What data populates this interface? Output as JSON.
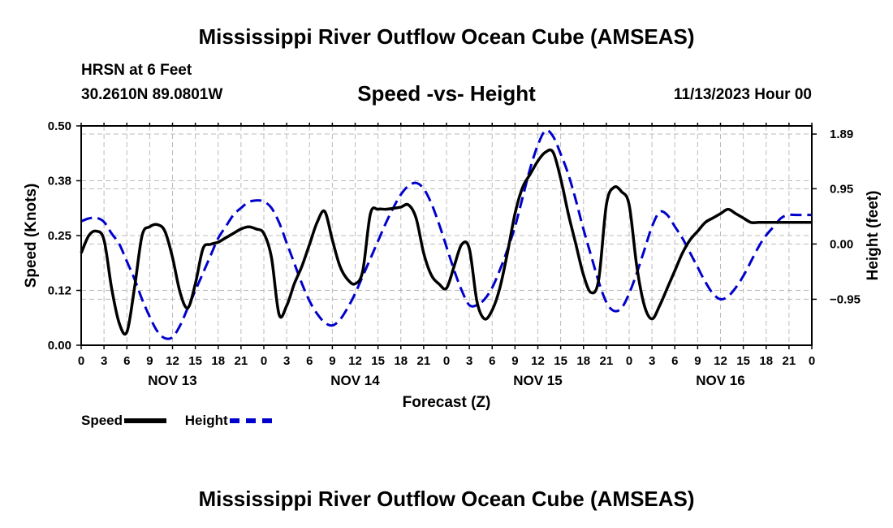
{
  "header": {
    "title": "Mississippi River Outflow Ocean Cube (AMSEAS)",
    "station": "HRSN at 6 Feet",
    "coords": "30.2610N  89.0801W",
    "subtitle": "Speed -vs- Height",
    "datetime": "11/13/2023 Hour 00",
    "bottom_title": "Mississippi River Outflow Ocean Cube (AMSEAS)"
  },
  "legend": {
    "speed_label": "Speed",
    "height_label": "Height"
  },
  "colors": {
    "speed": "#000000",
    "height": "#0000cc",
    "grid": "#bbbbbb"
  },
  "chart_data": {
    "type": "line",
    "title": "Speed -vs- Height",
    "xlabel": "Forecast (Z)",
    "ylabel_left": "Speed (Knots)",
    "ylabel_right": "Height (feet)",
    "xlim": [
      0,
      96
    ],
    "ylim_left": [
      0,
      0.5
    ],
    "ylim_right": [
      -1.74,
      2.03
    ],
    "grid": true,
    "x_tick_labels": [
      "0",
      "3",
      "6",
      "9",
      "12",
      "15",
      "18",
      "21",
      "0",
      "3",
      "6",
      "9",
      "12",
      "15",
      "18",
      "21",
      "0",
      "3",
      "6",
      "9",
      "12",
      "15",
      "18",
      "21",
      "0",
      "3",
      "6",
      "9",
      "12",
      "15",
      "18",
      "21",
      "0"
    ],
    "left_ticks": [
      {
        "value": 0.0,
        "label": "0.00"
      },
      {
        "value": 0.125,
        "label": "0.12"
      },
      {
        "value": 0.25,
        "label": "0.25"
      },
      {
        "value": 0.375,
        "label": "0.38"
      },
      {
        "value": 0.5,
        "label": "0.50"
      }
    ],
    "right_ticks": [
      {
        "value": -0.95,
        "label": "−0.95"
      },
      {
        "value": 0.0,
        "label": "0.00"
      },
      {
        "value": 0.95,
        "label": "0.95"
      },
      {
        "value": 1.89,
        "label": "1.89"
      }
    ],
    "day_labels": [
      {
        "hour": 12,
        "label": "NOV 13"
      },
      {
        "hour": 36,
        "label": "NOV 14"
      },
      {
        "hour": 60,
        "label": "NOV 15"
      },
      {
        "hour": 84,
        "label": "NOV 16"
      }
    ],
    "series": [
      {
        "name": "Speed",
        "axis": "left",
        "x": [
          0,
          1,
          2,
          3,
          4,
          5,
          6,
          7,
          8,
          9,
          10,
          11,
          12,
          13,
          14,
          15,
          16,
          17,
          18,
          19,
          20,
          21,
          22,
          23,
          24,
          25,
          26,
          27,
          28,
          29,
          30,
          31,
          32,
          33,
          34,
          35,
          36,
          37,
          38,
          39,
          40,
          41,
          42,
          43,
          44,
          45,
          46,
          47,
          48,
          49,
          50,
          51,
          52,
          53,
          54,
          55,
          56,
          57,
          58,
          59,
          60,
          61,
          62,
          63,
          64,
          65,
          66,
          67,
          68,
          69,
          70,
          71,
          72,
          73,
          74,
          75,
          76,
          77,
          78,
          79,
          80,
          81,
          82,
          83,
          84,
          85,
          86,
          87,
          88,
          89,
          90,
          91,
          92,
          93,
          94,
          95,
          96
        ],
        "values": [
          0.21,
          0.25,
          0.26,
          0.24,
          0.13,
          0.05,
          0.03,
          0.13,
          0.25,
          0.27,
          0.275,
          0.26,
          0.2,
          0.12,
          0.085,
          0.14,
          0.22,
          0.23,
          0.235,
          0.245,
          0.255,
          0.265,
          0.27,
          0.265,
          0.255,
          0.2,
          0.07,
          0.09,
          0.14,
          0.18,
          0.23,
          0.28,
          0.305,
          0.24,
          0.18,
          0.15,
          0.14,
          0.17,
          0.3,
          0.31,
          0.31,
          0.312,
          0.315,
          0.32,
          0.29,
          0.21,
          0.16,
          0.14,
          0.13,
          0.18,
          0.23,
          0.22,
          0.1,
          0.06,
          0.08,
          0.13,
          0.21,
          0.3,
          0.36,
          0.39,
          0.42,
          0.44,
          0.44,
          0.38,
          0.3,
          0.23,
          0.16,
          0.12,
          0.15,
          0.32,
          0.36,
          0.35,
          0.32,
          0.18,
          0.09,
          0.06,
          0.09,
          0.13,
          0.17,
          0.21,
          0.24,
          0.26,
          0.28,
          0.29,
          0.3,
          0.31,
          0.3,
          0.29,
          0.28,
          0.28,
          0.28,
          0.28,
          0.28,
          0.28,
          0.28,
          0.28,
          0.28
        ]
      },
      {
        "name": "Height",
        "axis": "right",
        "x": [
          0,
          1,
          2,
          3,
          4,
          5,
          6,
          7,
          8,
          9,
          10,
          11,
          12,
          13,
          14,
          15,
          16,
          17,
          18,
          19,
          20,
          21,
          22,
          23,
          24,
          25,
          26,
          27,
          28,
          29,
          30,
          31,
          32,
          33,
          34,
          35,
          36,
          37,
          38,
          39,
          40,
          41,
          42,
          43,
          44,
          45,
          46,
          47,
          48,
          49,
          50,
          51,
          52,
          53,
          54,
          55,
          56,
          57,
          58,
          59,
          60,
          61,
          62,
          63,
          64,
          65,
          66,
          67,
          68,
          69,
          70,
          71,
          72,
          73,
          74,
          75,
          76,
          77,
          78,
          79,
          80,
          81,
          82,
          83,
          84,
          85,
          86,
          87,
          88,
          89,
          90,
          91,
          92,
          93,
          94,
          95,
          96
        ],
        "values": [
          0.39,
          0.44,
          0.45,
          0.38,
          0.18,
          0.0,
          -0.3,
          -0.6,
          -0.95,
          -1.25,
          -1.5,
          -1.62,
          -1.6,
          -1.4,
          -1.1,
          -0.8,
          -0.5,
          -0.2,
          0.1,
          0.3,
          0.5,
          0.62,
          0.72,
          0.75,
          0.73,
          0.62,
          0.37,
          0.02,
          -0.33,
          -0.68,
          -0.98,
          -1.2,
          -1.35,
          -1.4,
          -1.3,
          -1.1,
          -0.85,
          -0.55,
          -0.25,
          0.05,
          0.35,
          0.62,
          0.85,
          1.0,
          1.05,
          0.95,
          0.7,
          0.35,
          -0.05,
          -0.45,
          -0.8,
          -1.05,
          -1.05,
          -0.95,
          -0.75,
          -0.45,
          -0.1,
          0.3,
          0.8,
          1.3,
          1.7,
          1.95,
          1.85,
          1.55,
          1.2,
          0.75,
          0.25,
          -0.2,
          -0.65,
          -1.0,
          -1.15,
          -1.1,
          -0.85,
          -0.5,
          -0.1,
          0.3,
          0.55,
          0.5,
          0.3,
          0.1,
          -0.15,
          -0.4,
          -0.65,
          -0.85,
          -0.95,
          -0.9,
          -0.75,
          -0.55,
          -0.3,
          -0.05,
          0.15,
          0.3,
          0.45,
          0.5,
          0.5,
          0.5,
          0.5
        ]
      }
    ]
  }
}
